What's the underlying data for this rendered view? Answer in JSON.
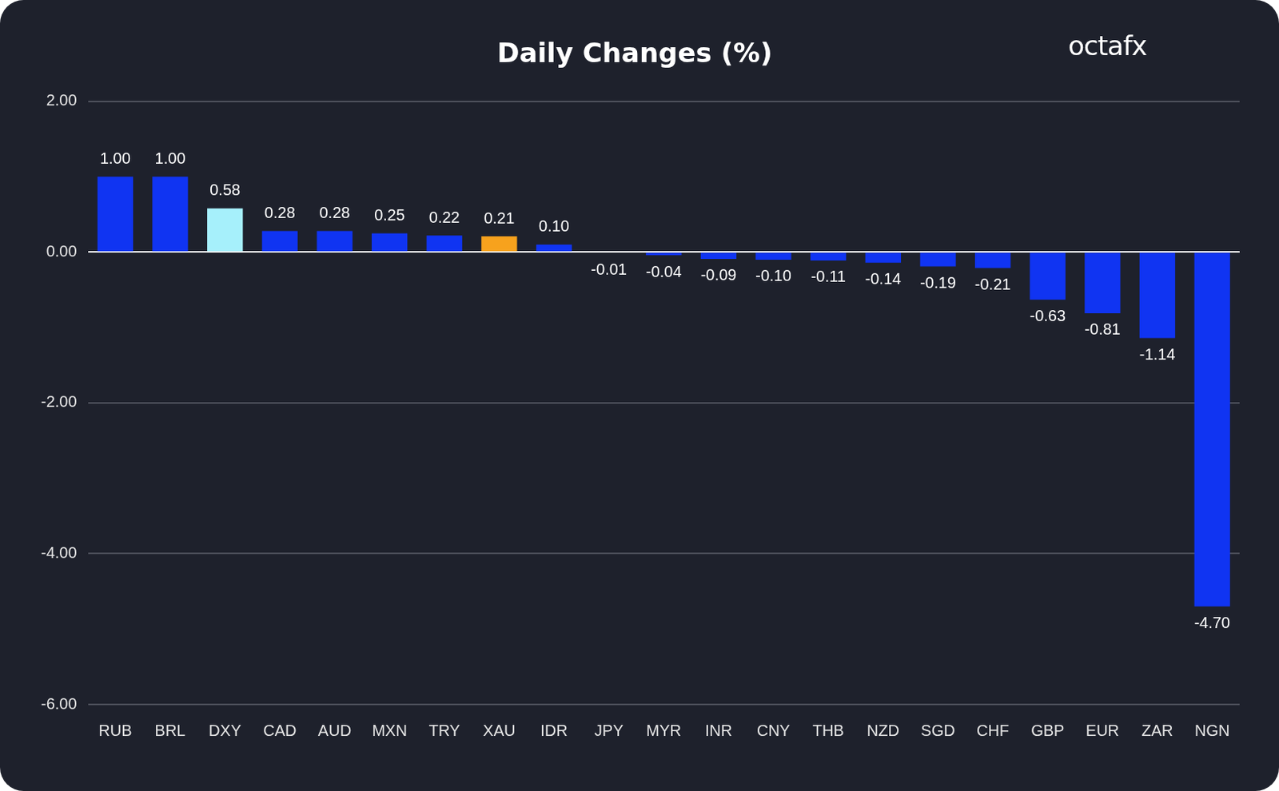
{
  "chart_data": {
    "type": "bar",
    "title": "Daily Changes (%)",
    "annotations": [
      "octafx"
    ],
    "categories": [
      "RUB",
      "BRL",
      "DXY",
      "CAD",
      "AUD",
      "MXN",
      "TRY",
      "XAU",
      "IDR",
      "JPY",
      "MYR",
      "INR",
      "CNY",
      "THB",
      "NZD",
      "SGD",
      "CHF",
      "GBP",
      "EUR",
      "ZAR",
      "NGN"
    ],
    "values": [
      1.0,
      1.0,
      0.58,
      0.28,
      0.28,
      0.25,
      0.22,
      0.21,
      0.1,
      -0.01,
      -0.04,
      -0.09,
      -0.1,
      -0.11,
      -0.14,
      -0.19,
      -0.21,
      -0.63,
      -0.81,
      -1.14,
      -4.7
    ],
    "value_labels": [
      "1.00",
      "1.00",
      "0.58",
      "0.28",
      "0.28",
      "0.25",
      "0.22",
      "0.21",
      "0.10",
      "-0.01",
      "-0.04",
      "-0.09",
      "-0.10",
      "-0.11",
      "-0.14",
      "-0.19",
      "-0.21",
      "-0.63",
      "-0.81",
      "-1.14",
      "-4.70"
    ],
    "colors": [
      "#1034f2",
      "#1034f2",
      "#a6f0fb",
      "#1034f2",
      "#1034f2",
      "#1034f2",
      "#1034f2",
      "#f7a21d",
      "#1034f2",
      "#1034f2",
      "#1034f2",
      "#1034f2",
      "#1034f2",
      "#1034f2",
      "#1034f2",
      "#1034f2",
      "#1034f2",
      "#1034f2",
      "#1034f2",
      "#1034f2",
      "#1034f2"
    ],
    "ylim": [
      -6,
      2
    ],
    "yticks": [
      {
        "value": -6,
        "label": "-6.00"
      },
      {
        "value": -4,
        "label": "-4.00"
      },
      {
        "value": -2,
        "label": "-2.00"
      },
      {
        "value": 0,
        "label": "0.00"
      },
      {
        "value": 2,
        "label": "2.00"
      }
    ],
    "grid": true,
    "data_labels": true
  }
}
